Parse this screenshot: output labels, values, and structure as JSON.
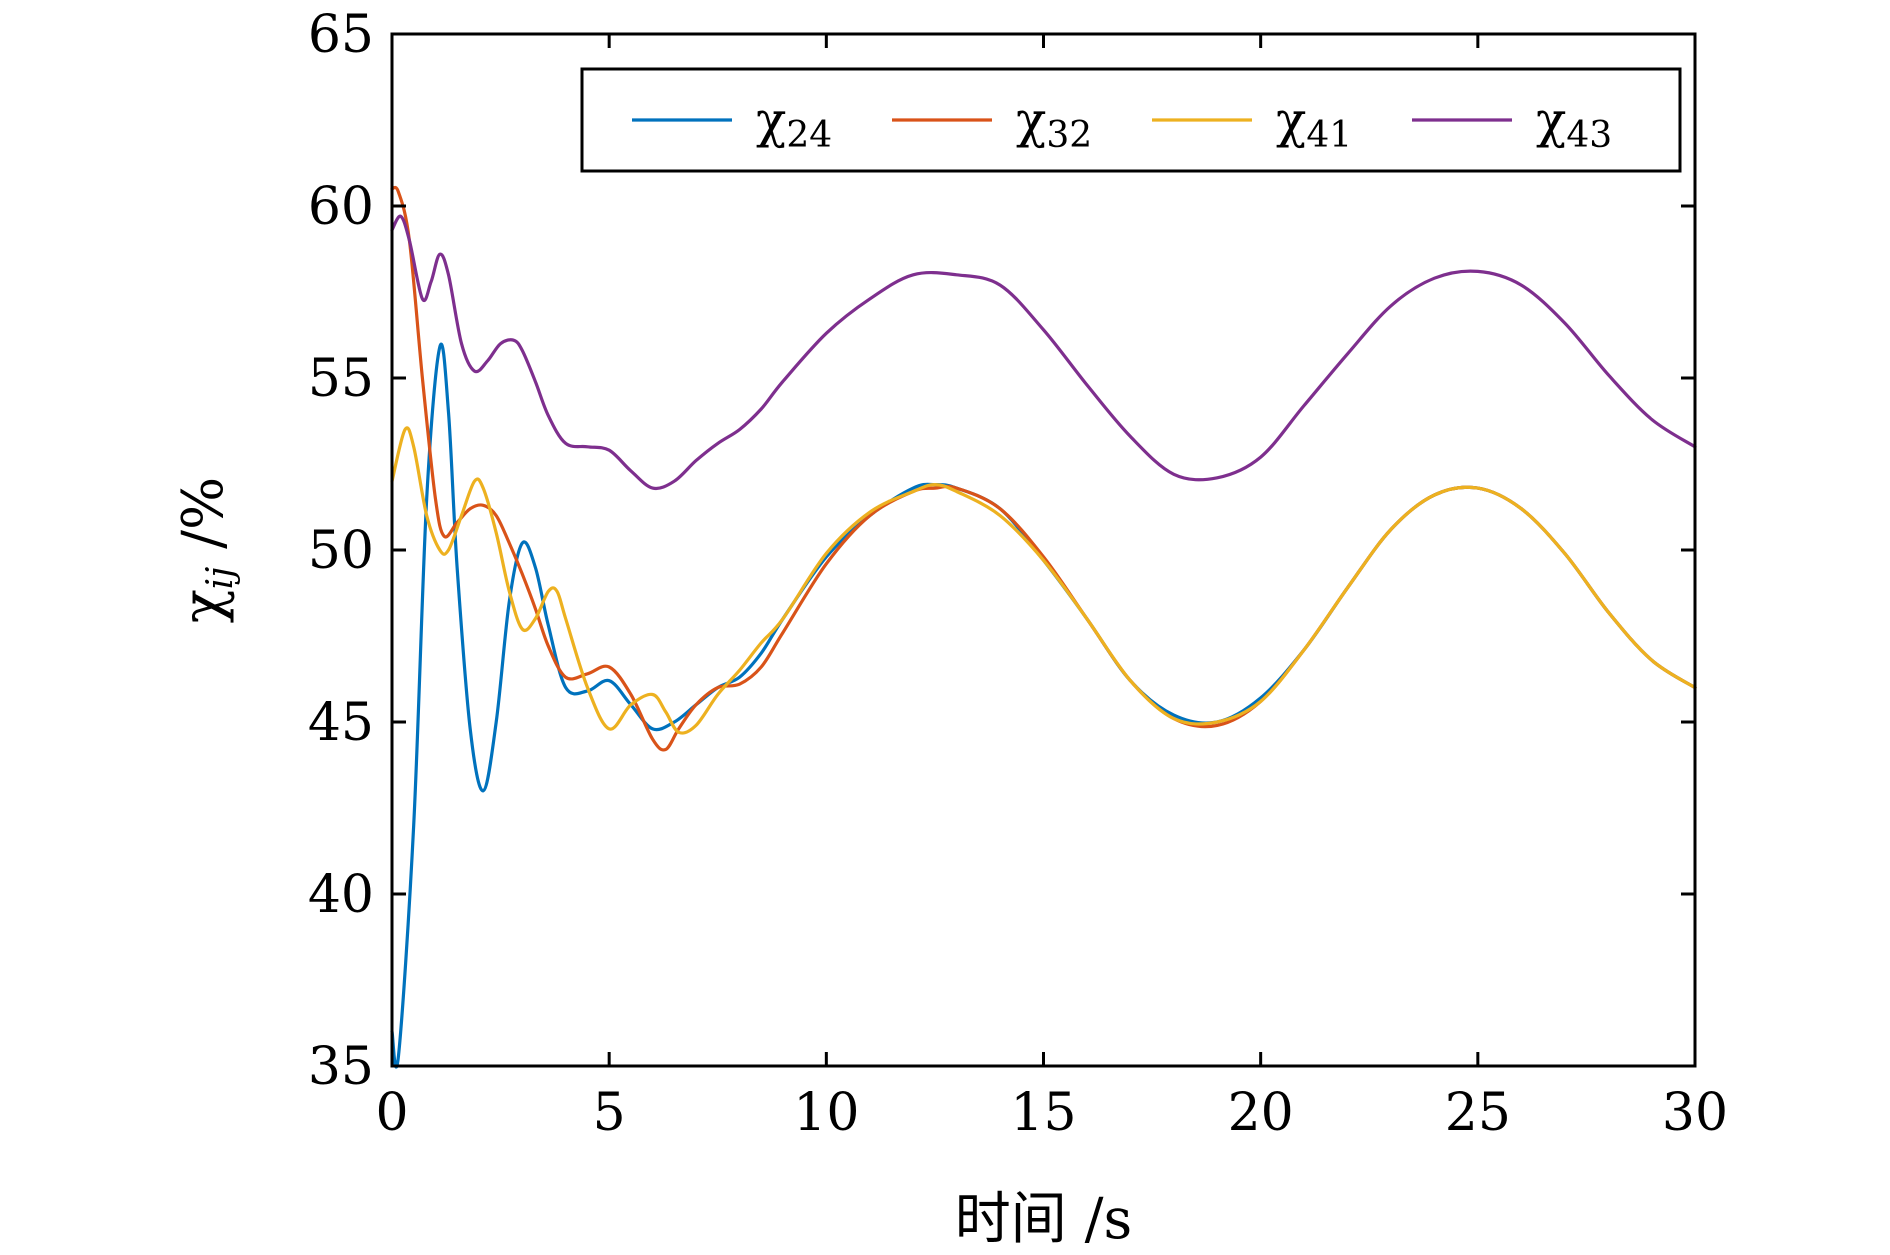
{
  "chart_data": {
    "type": "line",
    "xlabel": "时间 /s",
    "ylabel": "χ",
    "ylabel_sub": "ij",
    "ylabel_unit": " /%",
    "xlim": [
      0,
      30
    ],
    "ylim": [
      35,
      65
    ],
    "xticks": [
      "0",
      "5",
      "10",
      "15",
      "20",
      "25",
      "30"
    ],
    "xtick_values": [
      0,
      5,
      10,
      15,
      20,
      25,
      30
    ],
    "yticks": [
      "35",
      "40",
      "45",
      "50",
      "55",
      "60",
      "65"
    ],
    "ytick_values": [
      35,
      40,
      45,
      50,
      55,
      60,
      65
    ],
    "grid": false,
    "legend_position": "top-right",
    "series": [
      {
        "name": "χ24",
        "name_base": "χ",
        "name_sub": "24",
        "color": "#0072BD",
        "x": [
          0,
          0.15,
          0.5,
          0.8,
          1.1,
          1.3,
          1.5,
          1.8,
          2.1,
          2.4,
          2.7,
          3.0,
          3.3,
          3.6,
          4.0,
          4.5,
          5.0,
          5.5,
          6.0,
          6.5,
          7.0,
          7.5,
          8.0,
          8.5,
          9.0,
          10.0,
          11.0,
          12.0,
          12.5,
          13.0,
          14.0,
          15.0,
          16.0,
          17.0,
          18.0,
          19.0,
          20.0,
          21.0,
          22.0,
          23.0,
          24.0,
          25.0,
          26.0,
          27.0,
          28.0,
          29.0,
          30.0
        ],
        "y": [
          36.0,
          35.3,
          42.0,
          51.5,
          55.9,
          54.0,
          49.5,
          44.8,
          43.0,
          45.0,
          48.5,
          50.2,
          49.5,
          47.8,
          46.0,
          45.9,
          46.2,
          45.5,
          44.8,
          45.0,
          45.5,
          46.0,
          46.3,
          47.0,
          48.0,
          49.8,
          51.0,
          51.8,
          51.9,
          51.8,
          51.2,
          49.7,
          48.0,
          46.2,
          45.2,
          45.0,
          45.7,
          47.1,
          48.9,
          50.6,
          51.6,
          51.8,
          51.2,
          49.9,
          48.2,
          46.8,
          46.0
        ]
      },
      {
        "name": "χ32",
        "name_base": "χ",
        "name_sub": "32",
        "color": "#D95319",
        "x": [
          0,
          0.15,
          0.4,
          0.7,
          1.0,
          1.2,
          1.5,
          1.8,
          2.1,
          2.4,
          2.7,
          3.0,
          3.3,
          3.6,
          4.0,
          4.5,
          5.0,
          5.5,
          6.0,
          6.3,
          6.6,
          7.0,
          7.5,
          8.0,
          8.5,
          9.0,
          10.0,
          11.0,
          12.0,
          12.5,
          13.0,
          14.0,
          15.0,
          16.0,
          17.0,
          18.0,
          19.0,
          20.0,
          21.0,
          22.0,
          23.0,
          24.0,
          25.0,
          26.0,
          27.0,
          28.0,
          29.0,
          30.0
        ],
        "y": [
          60.5,
          60.4,
          59.0,
          55.0,
          51.5,
          50.4,
          50.8,
          51.2,
          51.3,
          51.0,
          50.2,
          49.3,
          48.3,
          47.2,
          46.3,
          46.4,
          46.6,
          45.8,
          44.5,
          44.2,
          44.8,
          45.5,
          46.0,
          46.1,
          46.6,
          47.6,
          49.6,
          51.0,
          51.7,
          51.8,
          51.8,
          51.2,
          49.8,
          48.0,
          46.2,
          45.1,
          44.9,
          45.6,
          47.1,
          48.9,
          50.6,
          51.6,
          51.8,
          51.2,
          49.9,
          48.2,
          46.8,
          46.0
        ]
      },
      {
        "name": "χ41",
        "name_base": "χ",
        "name_sub": "41",
        "color": "#EDB120",
        "x": [
          0,
          0.3,
          0.5,
          0.8,
          1.1,
          1.3,
          1.6,
          1.9,
          2.1,
          2.4,
          2.7,
          3.0,
          3.3,
          3.6,
          3.8,
          4.0,
          4.5,
          5.0,
          5.5,
          6.0,
          6.3,
          6.6,
          7.0,
          7.5,
          8.0,
          8.5,
          9.0,
          10.0,
          11.0,
          12.0,
          12.5,
          13.0,
          14.0,
          15.0,
          16.0,
          17.0,
          18.0,
          19.0,
          20.0,
          21.0,
          22.0,
          23.0,
          24.0,
          25.0,
          26.0,
          27.0,
          28.0,
          29.0,
          30.0
        ],
        "y": [
          52.0,
          53.5,
          53.0,
          51.0,
          50.0,
          50.0,
          51.0,
          52.0,
          51.8,
          50.5,
          48.8,
          47.7,
          48.0,
          48.8,
          48.8,
          48.0,
          46.0,
          44.8,
          45.5,
          45.8,
          45.3,
          44.7,
          44.9,
          45.8,
          46.5,
          47.3,
          48.0,
          49.9,
          51.1,
          51.7,
          51.9,
          51.7,
          51.0,
          49.7,
          48.0,
          46.2,
          45.1,
          45.0,
          45.6,
          47.1,
          48.9,
          50.6,
          51.6,
          51.8,
          51.2,
          49.9,
          48.2,
          46.8,
          46.0
        ]
      },
      {
        "name": "χ43",
        "name_base": "χ",
        "name_sub": "43",
        "color": "#7E2F8E",
        "x": [
          0,
          0.2,
          0.4,
          0.7,
          0.9,
          1.1,
          1.3,
          1.6,
          1.9,
          2.2,
          2.5,
          2.8,
          3.0,
          3.3,
          3.6,
          4.0,
          4.5,
          5.0,
          5.5,
          6.0,
          6.5,
          7.0,
          7.5,
          8.0,
          8.5,
          9.0,
          10.0,
          11.0,
          12.0,
          13.0,
          14.0,
          15.0,
          16.0,
          17.0,
          18.0,
          19.0,
          20.0,
          21.0,
          22.0,
          23.0,
          24.0,
          25.0,
          26.0,
          27.0,
          28.0,
          29.0,
          30.0
        ],
        "y": [
          59.3,
          59.7,
          59.0,
          57.3,
          57.8,
          58.6,
          58.0,
          56.0,
          55.2,
          55.5,
          56.0,
          56.1,
          55.8,
          54.9,
          53.9,
          53.1,
          53.0,
          52.9,
          52.3,
          51.8,
          52.0,
          52.6,
          53.1,
          53.5,
          54.1,
          54.9,
          56.3,
          57.3,
          58.0,
          58.0,
          57.7,
          56.4,
          54.8,
          53.3,
          52.2,
          52.1,
          52.7,
          54.2,
          55.7,
          57.1,
          57.9,
          58.1,
          57.7,
          56.6,
          55.1,
          53.8,
          53.0
        ]
      }
    ]
  }
}
